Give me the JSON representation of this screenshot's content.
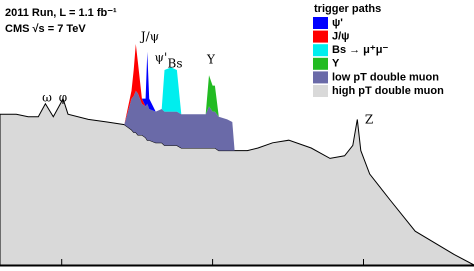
{
  "chart_data": {
    "type": "area",
    "stacked": true,
    "xscale": "log",
    "title": "2011 Run, L = 1.1 fb⁻¹",
    "subtitle": "CMS  √s = 7 TeV",
    "legend_title": "trigger paths",
    "legend": "top-right",
    "x": [
      0.39,
      0.5,
      0.6,
      0.7,
      0.78,
      0.88,
      0.98,
      1.02,
      1.1,
      1.5,
      2,
      2.6,
      2.9,
      3,
      3.1,
      3.2,
      3.4,
      3.6,
      3.69,
      3.8,
      4.2,
      4.6,
      4.8,
      5.3,
      5.8,
      6.2,
      8,
      9,
      9.46,
      10,
      10.36,
      11,
      12.5,
      13.5,
      14,
      17,
      20,
      25,
      32,
      45,
      60,
      75,
      85,
      91,
      96,
      110,
      150,
      220,
      400,
      540
    ],
    "xlim": [
      0.39,
      540
    ],
    "xticks": [
      1,
      10,
      100
    ],
    "ylim": [
      0,
      100
    ],
    "series": [
      {
        "name": "ψ'",
        "color": "#0000ff",
        "values": [
          0,
          0,
          0,
          0,
          0,
          0,
          0,
          0,
          0,
          0,
          0,
          0,
          0,
          0,
          0,
          0,
          0,
          3,
          20,
          4,
          0,
          0,
          0,
          0,
          0,
          0,
          0,
          0,
          0,
          0,
          0,
          0,
          0,
          0,
          0,
          0,
          0,
          0,
          0,
          0,
          0,
          0,
          0,
          0,
          0,
          0,
          0,
          0,
          0,
          0
        ]
      },
      {
        "name": "J/ψ",
        "color": "#ff0000",
        "values": [
          0,
          0,
          0,
          0,
          0,
          0,
          0,
          0,
          0,
          0,
          0,
          0,
          3,
          10,
          18,
          12,
          2,
          0,
          0,
          0,
          0,
          0,
          0,
          0,
          0,
          0,
          0,
          0,
          0,
          0,
          0,
          0,
          0,
          0,
          0,
          0,
          0,
          0,
          0,
          0,
          0,
          0,
          0,
          0,
          0,
          0,
          0,
          0,
          0,
          0
        ]
      },
      {
        "name": "Bs → μ⁺μ⁻",
        "color": "#00eeee",
        "values": [
          0,
          0,
          0,
          0,
          0,
          0,
          0,
          0,
          0,
          0,
          0,
          0,
          0,
          0,
          0,
          0,
          0,
          0,
          0,
          0,
          0,
          0,
          16,
          17,
          16,
          0,
          0,
          0,
          0,
          0,
          0,
          0,
          0,
          0,
          0,
          0,
          0,
          0,
          0,
          0,
          0,
          0,
          0,
          0,
          0,
          0,
          0,
          0,
          0,
          0
        ]
      },
      {
        "name": "Υ",
        "color": "#22bb22",
        "values": [
          0,
          0,
          0,
          0,
          0,
          0,
          0,
          0,
          0,
          0,
          0,
          0,
          0,
          0,
          0,
          0,
          0,
          0,
          0,
          0,
          0,
          0,
          0,
          0,
          0,
          0,
          0,
          0,
          12,
          10,
          10,
          0,
          0,
          0,
          0,
          0,
          0,
          0,
          0,
          0,
          0,
          0,
          0,
          0,
          0,
          0,
          0,
          0,
          0,
          0
        ]
      },
      {
        "name": "low pT double muon",
        "color": "#6a6aa8",
        "values": [
          0,
          0,
          0,
          0,
          0,
          0,
          0,
          0,
          0,
          0,
          0,
          0,
          12,
          14,
          16,
          16,
          12,
          12,
          14,
          12,
          12,
          13,
          13,
          13,
          13,
          13,
          13,
          13,
          16,
          14,
          14,
          13,
          12,
          11,
          0,
          0,
          0,
          0,
          0,
          0,
          0,
          0,
          0,
          0,
          0,
          0,
          0,
          0,
          0,
          0
        ]
      },
      {
        "name": "high pT double muon",
        "color": "#d9d9d9",
        "values": [
          58,
          58,
          57,
          57,
          62,
          57,
          62,
          64,
          58,
          56,
          55,
          54,
          52,
          51,
          51,
          50,
          50,
          49,
          48,
          48,
          47,
          47,
          46,
          46,
          46,
          45,
          45,
          45,
          45,
          45,
          45,
          44,
          44,
          44,
          44,
          44,
          45,
          47,
          48,
          45,
          41,
          42,
          46,
          56,
          44,
          35,
          25,
          13,
          4,
          0
        ]
      }
    ],
    "annotations": [
      "ω",
      "φ",
      "J/ψ",
      "ψ'",
      "Bs",
      "Υ",
      "Z"
    ]
  }
}
